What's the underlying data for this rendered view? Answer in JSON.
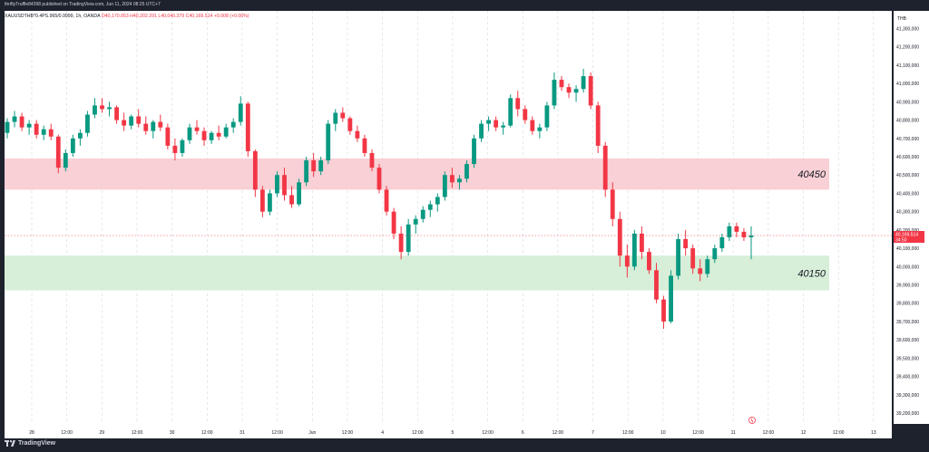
{
  "header": {
    "publish_line": "thriftyTruffle84398 published on TradingView.com, Jun 11, 2024 08:25 UTC+7"
  },
  "legend": {
    "symbol": "XAUUSDTHB*0.4PS.965/0.9999, 1h, OANDA",
    "open": "O40,170.053",
    "high": "H40,202.291",
    "low": "L40,040.379",
    "close": "C40,169.514",
    "change": "+0.008 (+0.00%)"
  },
  "footer": {
    "brand": "TradingView"
  },
  "chart_data": {
    "type": "candlestick",
    "currency_label": "THB",
    "ylim": [
      39150000,
      41350000
    ],
    "y_ticks": [
      {
        "value": 41300000,
        "label": "41,300,000"
      },
      {
        "value": 41200000,
        "label": "41,200,000"
      },
      {
        "value": 41100000,
        "label": "41,100,000"
      },
      {
        "value": 41000000,
        "label": "41,000,000"
      },
      {
        "value": 40900000,
        "label": "40,900,000"
      },
      {
        "value": 40800000,
        "label": "40,800,000"
      },
      {
        "value": 40700000,
        "label": "40,700,000"
      },
      {
        "value": 40600000,
        "label": "40,600,000"
      },
      {
        "value": 40500000,
        "label": "40,500,000"
      },
      {
        "value": 40400000,
        "label": "40,400,000"
      },
      {
        "value": 40300000,
        "label": "40,300,000"
      },
      {
        "value": 40200000,
        "label": "40,200,000"
      },
      {
        "value": 40100000,
        "label": "40,100,000"
      },
      {
        "value": 40000000,
        "label": "40,000,000"
      },
      {
        "value": 39900000,
        "label": "39,900,000"
      },
      {
        "value": 39800000,
        "label": "39,800,000"
      },
      {
        "value": 39700000,
        "label": "39,700,000"
      },
      {
        "value": 39600000,
        "label": "39,600,000"
      },
      {
        "value": 39500000,
        "label": "39,500,000"
      },
      {
        "value": 39400000,
        "label": "39,400,000"
      },
      {
        "value": 39300000,
        "label": "39,300,000"
      },
      {
        "value": 39200000,
        "label": "39,200,000"
      }
    ],
    "x_ticks": [
      "28",
      "12:00",
      "29",
      "12:00",
      "30",
      "12:00",
      "31",
      "12:00",
      "Jun",
      "12:00",
      "4",
      "12:00",
      "5",
      "12:00",
      "6",
      "12:00",
      "7",
      "12:00",
      "10",
      "12:00",
      "11",
      "12:00",
      "12",
      "12:00",
      "13"
    ],
    "current_price": {
      "label": "40,169.514",
      "countdown": "34:50",
      "value": 40169514
    },
    "zones": [
      {
        "label": "40450",
        "from": 40420000,
        "to": 40590000,
        "color": "#f7cbd0"
      },
      {
        "label": "40150",
        "from": 39870000,
        "to": 40060000,
        "color": "#d3ecd4"
      }
    ],
    "up_color": "#089981",
    "down_color": "#f23645",
    "candles": [
      [
        40730000,
        40810000,
        40700000,
        40790000
      ],
      [
        40790000,
        40850000,
        40760000,
        40820000
      ],
      [
        40820000,
        40840000,
        40740000,
        40760000
      ],
      [
        40760000,
        40800000,
        40720000,
        40780000
      ],
      [
        40780000,
        40800000,
        40700000,
        40720000
      ],
      [
        40720000,
        40770000,
        40690000,
        40750000
      ],
      [
        40750000,
        40780000,
        40690000,
        40710000
      ],
      [
        40710000,
        40720000,
        40510000,
        40540000
      ],
      [
        40540000,
        40640000,
        40520000,
        40620000
      ],
      [
        40620000,
        40720000,
        40600000,
        40700000
      ],
      [
        40700000,
        40750000,
        40660000,
        40730000
      ],
      [
        40730000,
        40850000,
        40710000,
        40830000
      ],
      [
        40830000,
        40920000,
        40810000,
        40880000
      ],
      [
        40880000,
        40920000,
        40840000,
        40860000
      ],
      [
        40860000,
        40900000,
        40820000,
        40870000
      ],
      [
        40870000,
        40880000,
        40780000,
        40800000
      ],
      [
        40800000,
        40840000,
        40740000,
        40770000
      ],
      [
        40770000,
        40830000,
        40750000,
        40820000
      ],
      [
        40820000,
        40860000,
        40760000,
        40780000
      ],
      [
        40780000,
        40820000,
        40720000,
        40740000
      ],
      [
        40740000,
        40800000,
        40700000,
        40790000
      ],
      [
        40790000,
        40830000,
        40740000,
        40760000
      ],
      [
        40760000,
        40780000,
        40640000,
        40660000
      ],
      [
        40660000,
        40700000,
        40580000,
        40620000
      ],
      [
        40620000,
        40700000,
        40600000,
        40690000
      ],
      [
        40690000,
        40780000,
        40670000,
        40760000
      ],
      [
        40760000,
        40800000,
        40720000,
        40740000
      ],
      [
        40740000,
        40760000,
        40660000,
        40690000
      ],
      [
        40690000,
        40740000,
        40670000,
        40730000
      ],
      [
        40730000,
        40770000,
        40690000,
        40710000
      ],
      [
        40710000,
        40780000,
        40700000,
        40760000
      ],
      [
        40760000,
        40810000,
        40730000,
        40790000
      ],
      [
        40790000,
        40930000,
        40770000,
        40890000
      ],
      [
        40890000,
        40900000,
        40600000,
        40630000
      ],
      [
        40630000,
        40640000,
        40380000,
        40420000
      ],
      [
        40420000,
        40440000,
        40270000,
        40300000
      ],
      [
        40300000,
        40420000,
        40280000,
        40400000
      ],
      [
        40400000,
        40520000,
        40380000,
        40500000
      ],
      [
        40500000,
        40540000,
        40360000,
        40390000
      ],
      [
        40390000,
        40440000,
        40320000,
        40340000
      ],
      [
        40340000,
        40480000,
        40330000,
        40460000
      ],
      [
        40460000,
        40600000,
        40440000,
        40580000
      ],
      [
        40580000,
        40620000,
        40490000,
        40520000
      ],
      [
        40520000,
        40600000,
        40500000,
        40580000
      ],
      [
        40580000,
        40800000,
        40560000,
        40780000
      ],
      [
        40780000,
        40860000,
        40740000,
        40840000
      ],
      [
        40840000,
        40870000,
        40790000,
        40810000
      ],
      [
        40810000,
        40820000,
        40720000,
        40740000
      ],
      [
        40740000,
        40770000,
        40680000,
        40700000
      ],
      [
        40700000,
        40720000,
        40600000,
        40620000
      ],
      [
        40620000,
        40640000,
        40520000,
        40540000
      ],
      [
        40540000,
        40560000,
        40400000,
        40420000
      ],
      [
        40420000,
        40440000,
        40280000,
        40300000
      ],
      [
        40300000,
        40320000,
        40150000,
        40180000
      ],
      [
        40180000,
        40220000,
        40040000,
        40080000
      ],
      [
        40080000,
        40260000,
        40060000,
        40230000
      ],
      [
        40230000,
        40280000,
        40180000,
        40260000
      ],
      [
        40260000,
        40330000,
        40240000,
        40310000
      ],
      [
        40310000,
        40360000,
        40270000,
        40340000
      ],
      [
        40340000,
        40400000,
        40300000,
        40380000
      ],
      [
        40380000,
        40520000,
        40360000,
        40500000
      ],
      [
        40500000,
        40540000,
        40430000,
        40460000
      ],
      [
        40460000,
        40500000,
        40420000,
        40480000
      ],
      [
        40480000,
        40580000,
        40460000,
        40560000
      ],
      [
        40560000,
        40720000,
        40540000,
        40700000
      ],
      [
        40700000,
        40800000,
        40680000,
        40780000
      ],
      [
        40780000,
        40820000,
        40740000,
        40800000
      ],
      [
        40800000,
        40820000,
        40740000,
        40760000
      ],
      [
        40760000,
        40790000,
        40720000,
        40770000
      ],
      [
        40770000,
        40940000,
        40760000,
        40920000
      ],
      [
        40920000,
        40960000,
        40820000,
        40860000
      ],
      [
        40860000,
        40880000,
        40780000,
        40800000
      ],
      [
        40800000,
        40820000,
        40720000,
        40740000
      ],
      [
        40740000,
        40780000,
        40700000,
        40760000
      ],
      [
        40760000,
        40900000,
        40740000,
        40880000
      ],
      [
        40880000,
        41060000,
        40860000,
        41020000
      ],
      [
        41020000,
        41040000,
        40960000,
        40980000
      ],
      [
        40980000,
        41000000,
        40920000,
        40950000
      ],
      [
        40950000,
        40990000,
        40900000,
        40970000
      ],
      [
        40970000,
        41080000,
        40950000,
        41040000
      ],
      [
        41040000,
        41060000,
        40860000,
        40880000
      ],
      [
        40880000,
        40900000,
        40620000,
        40660000
      ],
      [
        40660000,
        40680000,
        40380000,
        40420000
      ],
      [
        40420000,
        40460000,
        40220000,
        40260000
      ],
      [
        40260000,
        40300000,
        40000000,
        40060000
      ],
      [
        40060000,
        40120000,
        39940000,
        40000000
      ],
      [
        40000000,
        40200000,
        39980000,
        40180000
      ],
      [
        40180000,
        40220000,
        40040000,
        40080000
      ],
      [
        40080000,
        40100000,
        39960000,
        39980000
      ],
      [
        39980000,
        40020000,
        39800000,
        39820000
      ],
      [
        39820000,
        39840000,
        39660000,
        39700000
      ],
      [
        39700000,
        39980000,
        39690000,
        39950000
      ],
      [
        39950000,
        40180000,
        39930000,
        40150000
      ],
      [
        40150000,
        40200000,
        40060000,
        40100000
      ],
      [
        40100000,
        40120000,
        39960000,
        39990000
      ],
      [
        39990000,
        40040000,
        39920000,
        39960000
      ],
      [
        39960000,
        40060000,
        39940000,
        40040000
      ],
      [
        40040000,
        40120000,
        40020000,
        40100000
      ],
      [
        40100000,
        40180000,
        40080000,
        40160000
      ],
      [
        40160000,
        40240000,
        40140000,
        40220000
      ],
      [
        40220000,
        40240000,
        40160000,
        40190000
      ],
      [
        40190000,
        40210000,
        40140000,
        40160000
      ],
      [
        40160000,
        40220000,
        40040000,
        40170000
      ]
    ]
  }
}
